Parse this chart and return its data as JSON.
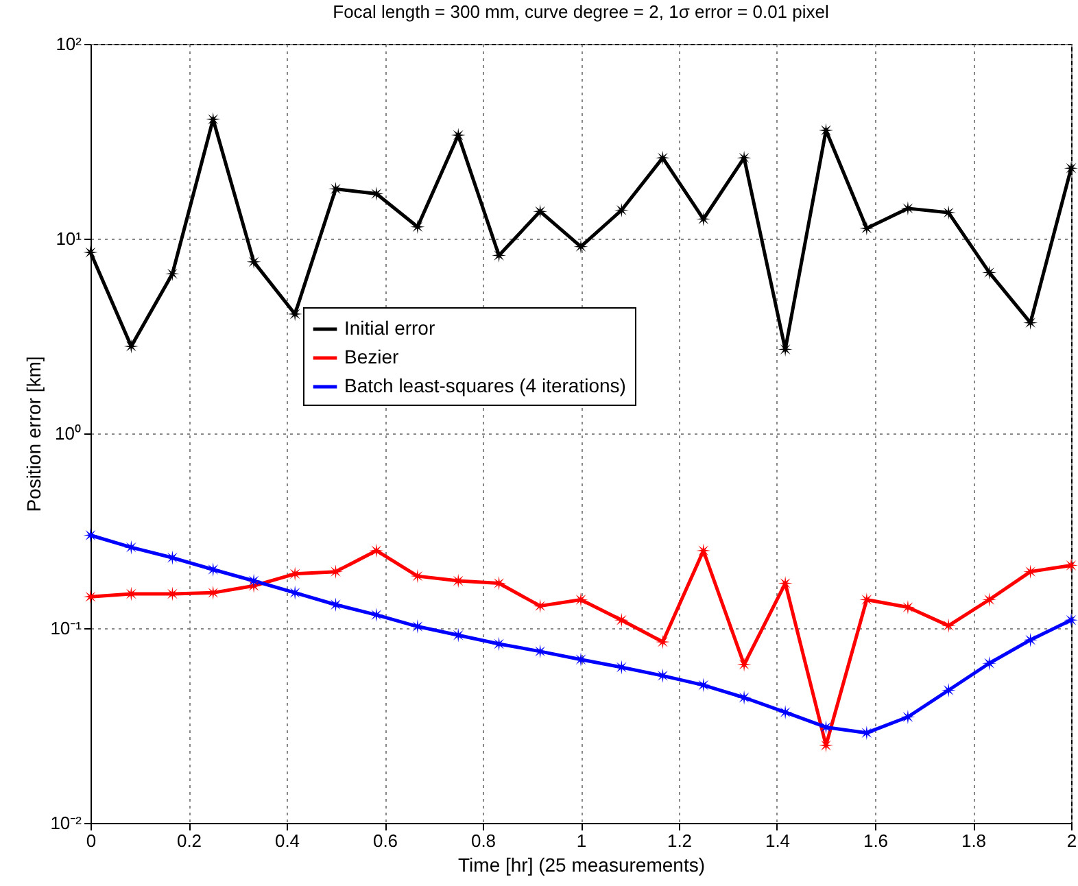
{
  "chart_data": {
    "type": "line",
    "title": "Focal length = 300 mm, curve degree = 2, 1σ error = 0.01 pixel",
    "xlabel": "Time [hr]  (25 measurements)",
    "ylabel": "Position error [km]",
    "x": [
      0,
      0.083,
      0.167,
      0.25,
      0.333,
      0.417,
      0.5,
      0.583,
      0.667,
      0.75,
      0.833,
      0.917,
      1,
      1.083,
      1.167,
      1.25,
      1.333,
      1.417,
      1.5,
      1.583,
      1.667,
      1.75,
      1.833,
      1.917,
      2
    ],
    "series": [
      {
        "name": "Initial error",
        "color": "#000000",
        "values": [
          8.5,
          2.8,
          6.6,
          41,
          7.6,
          4.1,
          18,
          17,
          11.5,
          34,
          8.2,
          13.8,
          9.1,
          14,
          26,
          12.6,
          26,
          2.7,
          36,
          11.3,
          14.3,
          13.6,
          6.7,
          3.7,
          23
        ]
      },
      {
        "name": "Bezier",
        "color": "#ff0000",
        "values": [
          0.145,
          0.15,
          0.15,
          0.152,
          0.165,
          0.19,
          0.195,
          0.25,
          0.185,
          0.175,
          0.17,
          0.13,
          0.14,
          0.11,
          0.085,
          0.25,
          0.065,
          0.17,
          0.025,
          0.14,
          0.128,
          0.103,
          0.14,
          0.195,
          0.21
        ]
      },
      {
        "name": "Batch least-squares (4 iterations)",
        "color": "#0000ff",
        "values": [
          0.3,
          0.26,
          0.23,
          0.2,
          0.175,
          0.152,
          0.132,
          0.117,
          0.102,
          0.092,
          0.083,
          0.076,
          0.069,
          0.063,
          0.057,
          0.051,
          0.044,
          0.037,
          0.031,
          0.029,
          0.035,
          0.048,
          0.066,
          0.087,
          0.11
        ]
      }
    ],
    "xlim": [
      0,
      2
    ],
    "xticks": [
      0,
      0.2,
      0.4,
      0.6,
      0.8,
      1,
      1.2,
      1.4,
      1.6,
      1.8,
      2
    ],
    "ylim": [
      0.01,
      100
    ],
    "log": true,
    "yticks": [
      {
        "value": 0.01,
        "label": "10⁻²"
      },
      {
        "value": 0.1,
        "label": "10⁻¹"
      },
      {
        "value": 1,
        "label": "10⁰"
      },
      {
        "value": 10,
        "label": "10¹"
      },
      {
        "value": 100,
        "label": "10²"
      }
    ],
    "grid": true,
    "legend": "left",
    "marker": "star",
    "line_style": "solid"
  }
}
